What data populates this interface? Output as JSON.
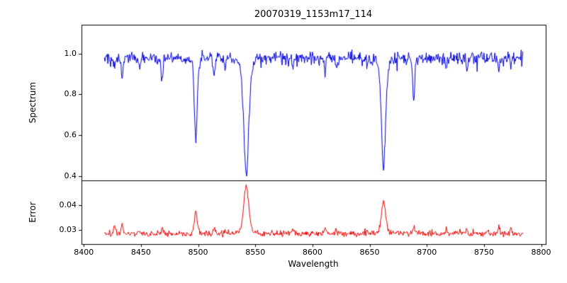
{
  "chart_data": [
    {
      "type": "line",
      "title": "20070319_1153m17_114",
      "ylabel": "Spectrum",
      "xlim": [
        8398,
        8804
      ],
      "ylim": [
        0.38,
        1.14
      ],
      "grid": false,
      "legend": "none",
      "xticks": [
        {
          "v": 8400,
          "label": "8400"
        },
        {
          "v": 8450,
          "label": "8450"
        },
        {
          "v": 8500,
          "label": "8500"
        },
        {
          "v": 8550,
          "label": "8550"
        },
        {
          "v": 8600,
          "label": "8600"
        },
        {
          "v": 8650,
          "label": "8650"
        },
        {
          "v": 8700,
          "label": "8700"
        },
        {
          "v": 8750,
          "label": "8750"
        },
        {
          "v": 8800,
          "label": "8800"
        }
      ],
      "yticks": [
        {
          "v": 0.4,
          "label": "0.4"
        },
        {
          "v": 0.6,
          "label": "0.6"
        },
        {
          "v": 0.8,
          "label": "0.8"
        },
        {
          "v": 1.0,
          "label": "1.0"
        }
      ],
      "series": [
        {
          "name": "spectrum",
          "color": "#0000dd",
          "x_start": 8418,
          "x_end": 8784,
          "x_step": 0.5,
          "baseline": 0.978,
          "noise_sigma": 0.014,
          "absorption_lines": [
            {
              "center": 8498.0,
              "depth": 0.41,
              "width": 1.3,
              "error_peak": 0.009
            },
            {
              "center": 8542.1,
              "depth": 0.58,
              "width": 2.3,
              "error_peak": 0.019
            },
            {
              "center": 8662.1,
              "depth": 0.54,
              "width": 1.9,
              "error_peak": 0.013
            },
            {
              "center": 8688.6,
              "depth": 0.21,
              "width": 0.9,
              "error_peak": 0.0032
            },
            {
              "center": 8427.0,
              "depth": 0.05,
              "width": 0.8,
              "error_peak": 0.003
            },
            {
              "center": 8433.5,
              "depth": 0.09,
              "width": 0.7,
              "error_peak": 0.004
            },
            {
              "center": 8449.0,
              "depth": 0.05,
              "width": 0.6,
              "error_peak": 0.002
            },
            {
              "center": 8468.5,
              "depth": 0.1,
              "width": 0.8,
              "error_peak": 0.003
            },
            {
              "center": 8514.0,
              "depth": 0.07,
              "width": 0.7,
              "error_peak": 0.002
            },
            {
              "center": 8523.5,
              "depth": 0.05,
              "width": 0.6,
              "error_peak": 0.002
            },
            {
              "center": 8583.0,
              "depth": 0.06,
              "width": 0.7,
              "error_peak": 0.002
            },
            {
              "center": 8611.0,
              "depth": 0.06,
              "width": 0.6,
              "error_peak": 0.002
            },
            {
              "center": 8621.0,
              "depth": 0.05,
              "width": 0.6,
              "error_peak": 0.002
            },
            {
              "center": 8648.0,
              "depth": 0.06,
              "width": 0.6,
              "error_peak": 0.002
            },
            {
              "center": 8717.0,
              "depth": 0.06,
              "width": 0.7,
              "error_peak": 0.002
            },
            {
              "center": 8735.0,
              "depth": 0.05,
              "width": 0.6,
              "error_peak": 0.002
            },
            {
              "center": 8763.0,
              "depth": 0.07,
              "width": 0.7,
              "error_peak": 0.003
            },
            {
              "center": 8773.5,
              "depth": 0.05,
              "width": 0.6,
              "error_peak": 0.003
            }
          ]
        }
      ]
    },
    {
      "type": "line",
      "ylabel": "Error",
      "xlabel": "Wavelength",
      "xlim": [
        8398,
        8804
      ],
      "ylim": [
        0.0243,
        0.05
      ],
      "grid": false,
      "legend": "none",
      "yticks": [
        {
          "v": 0.03,
          "label": "0.03"
        },
        {
          "v": 0.04,
          "label": "0.04"
        }
      ],
      "series": [
        {
          "name": "error",
          "color": "#ee0000",
          "baseline": 0.0285,
          "noise_sigma": 0.0006
        }
      ]
    }
  ]
}
